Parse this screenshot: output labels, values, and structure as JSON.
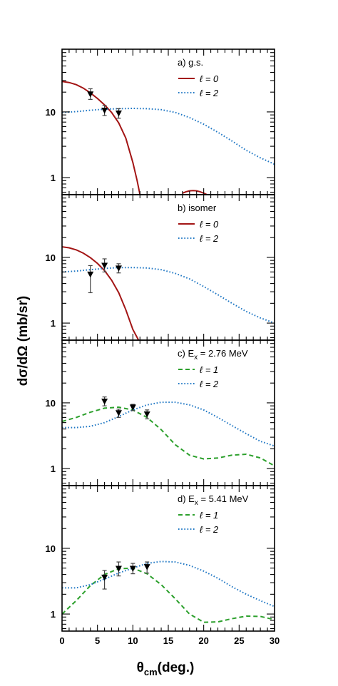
{
  "figure": {
    "y_title": "dσ/dΩ (mb/sr)",
    "x_title_main": "θ",
    "x_title_sub": "cm",
    "x_title_tail": "(deg.)"
  },
  "chart_data": [
    {
      "type": "line",
      "panel": "a",
      "legend_title_parts": [
        "a) g.s."
      ],
      "x_range": [
        0,
        30
      ],
      "y_range": [
        0.55,
        90
      ],
      "y_scale": "log",
      "x_ticks": [
        0,
        5,
        10,
        15,
        20,
        25,
        30
      ],
      "y_tick_labels": [
        {
          "value": 1,
          "label": "1"
        },
        {
          "value": 10,
          "label": "10"
        }
      ],
      "legend_position": "top-right",
      "series": [
        {
          "label": "ℓ = 0",
          "color": "#a31515",
          "dash": "solid",
          "x": [
            0,
            1,
            2,
            3,
            4,
            5,
            6,
            7,
            8,
            9,
            10,
            10.6,
            11
          ],
          "y": [
            29,
            28,
            26,
            23,
            19.5,
            16,
            12.8,
            9.8,
            6.8,
            4.0,
            1.7,
            0.9,
            0.55
          ]
        },
        {
          "label": "",
          "color": "#a31515",
          "dash": "solid",
          "x": [
            17,
            17.5,
            18,
            18.5,
            19,
            19.5,
            20,
            20.5
          ],
          "y": [
            0.58,
            0.61,
            0.63,
            0.635,
            0.63,
            0.61,
            0.58,
            0.55
          ]
        },
        {
          "label": "ℓ = 2",
          "color": "#1f77c4",
          "dash": "dotted",
          "x": [
            0,
            2,
            4,
            6,
            8,
            10,
            12,
            14,
            16,
            18,
            20,
            22,
            24,
            26,
            28,
            30
          ],
          "y": [
            9.8,
            10.1,
            10.6,
            11.0,
            11.2,
            11.3,
            11.2,
            10.8,
            9.8,
            8.2,
            6.5,
            4.9,
            3.6,
            2.6,
            2.0,
            1.6
          ]
        }
      ],
      "data_points": [
        {
          "x": 4,
          "y": 18.5,
          "y_low": 15.5,
          "y_high": 22.5
        },
        {
          "x": 6,
          "y": 10.5,
          "y_low": 8.8,
          "y_high": 12.5
        },
        {
          "x": 8,
          "y": 9.5,
          "y_low": 8.0,
          "y_high": 11.2
        }
      ]
    },
    {
      "type": "line",
      "panel": "b",
      "legend_title_parts": [
        "b) isomer"
      ],
      "x_range": [
        0,
        30
      ],
      "y_range": [
        0.55,
        90
      ],
      "y_scale": "log",
      "x_ticks": [
        0,
        5,
        10,
        15,
        20,
        25,
        30
      ],
      "y_tick_labels": [
        {
          "value": 1,
          "label": "1"
        },
        {
          "value": 10,
          "label": "10"
        }
      ],
      "legend_position": "top-right",
      "series": [
        {
          "label": "ℓ = 0",
          "color": "#a31515",
          "dash": "solid",
          "x": [
            0,
            1,
            2,
            3,
            4,
            5,
            6,
            7,
            8,
            9,
            10,
            10.8
          ],
          "y": [
            14.5,
            14.0,
            13.0,
            11.6,
            9.9,
            8.1,
            6.3,
            4.5,
            2.9,
            1.6,
            0.8,
            0.55
          ]
        },
        {
          "label": "ℓ = 2",
          "color": "#1f77c4",
          "dash": "dotted",
          "x": [
            0,
            2,
            4,
            6,
            8,
            10,
            12,
            14,
            16,
            18,
            20,
            22,
            24,
            26,
            28,
            30
          ],
          "y": [
            6.0,
            6.2,
            6.5,
            6.8,
            7.0,
            7.0,
            6.9,
            6.5,
            5.7,
            4.7,
            3.6,
            2.7,
            2.0,
            1.5,
            1.2,
            1.0
          ]
        }
      ],
      "data_points": [
        {
          "x": 4,
          "y": 5.5,
          "y_low": 2.9,
          "y_high": 7.5
        },
        {
          "x": 6,
          "y": 7.5,
          "y_low": 6.0,
          "y_high": 9.5
        },
        {
          "x": 8,
          "y": 6.8,
          "y_low": 5.8,
          "y_high": 8.0
        }
      ]
    },
    {
      "type": "line",
      "panel": "c",
      "legend_title_parts": [
        "c) E",
        "x",
        " = 2.76 MeV"
      ],
      "x_range": [
        0,
        30
      ],
      "y_range": [
        0.55,
        90
      ],
      "y_scale": "log",
      "x_ticks": [
        0,
        5,
        10,
        15,
        20,
        25,
        30
      ],
      "y_tick_labels": [
        {
          "value": 1,
          "label": "1"
        },
        {
          "value": 10,
          "label": "10"
        }
      ],
      "legend_position": "top-right",
      "series": [
        {
          "label": "ℓ = 1",
          "color": "#2ca02c",
          "dash": "dashed",
          "x": [
            0,
            2,
            4,
            6,
            8,
            10,
            12,
            14,
            16,
            18,
            20,
            22,
            24,
            26,
            28,
            30
          ],
          "y": [
            5.2,
            6.0,
            7.2,
            8.3,
            8.6,
            7.8,
            6.0,
            3.9,
            2.3,
            1.6,
            1.4,
            1.45,
            1.6,
            1.65,
            1.45,
            1.1
          ]
        },
        {
          "label": "ℓ = 2",
          "color": "#1f77c4",
          "dash": "dotted",
          "x": [
            0,
            2,
            4,
            6,
            8,
            10,
            12,
            14,
            16,
            18,
            20,
            22,
            24,
            26,
            28,
            30
          ],
          "y": [
            4.2,
            4.2,
            4.4,
            5.0,
            6.2,
            7.8,
            9.3,
            10.2,
            10.2,
            9.3,
            7.8,
            6.0,
            4.5,
            3.4,
            2.6,
            2.2
          ]
        }
      ],
      "data_points": [
        {
          "x": 6,
          "y": 10.5,
          "y_low": 9.0,
          "y_high": 12.3
        },
        {
          "x": 8,
          "y": 7.0,
          "y_low": 6.0,
          "y_high": 8.0
        },
        {
          "x": 10,
          "y": 8.5,
          "y_low": 7.6,
          "y_high": 9.5
        },
        {
          "x": 12,
          "y": 6.7,
          "y_low": 5.7,
          "y_high": 7.8
        }
      ]
    },
    {
      "type": "line",
      "panel": "d",
      "legend_title_parts": [
        "d) E",
        "x",
        " = 5.41 MeV"
      ],
      "x_range": [
        0,
        30
      ],
      "y_range": [
        0.55,
        90
      ],
      "y_scale": "log",
      "x_ticks": [
        0,
        5,
        10,
        15,
        20,
        25,
        30
      ],
      "x_tick_labels": [
        "0",
        "5",
        "10",
        "15",
        "20",
        "25",
        "30"
      ],
      "y_tick_labels": [
        {
          "value": 1,
          "label": "1"
        },
        {
          "value": 10,
          "label": "10"
        }
      ],
      "legend_position": "top-right",
      "series": [
        {
          "label": "ℓ = 1",
          "color": "#2ca02c",
          "dash": "dashed",
          "x": [
            0,
            2,
            4,
            6,
            8,
            10,
            12,
            14,
            16,
            18,
            20,
            22,
            24,
            26,
            28,
            30
          ],
          "y": [
            1.0,
            1.6,
            2.7,
            4.0,
            4.9,
            5.0,
            4.1,
            2.8,
            1.7,
            1.0,
            0.75,
            0.76,
            0.85,
            0.93,
            0.92,
            0.82
          ]
        },
        {
          "label": "ℓ = 2",
          "color": "#1f77c4",
          "dash": "dotted",
          "x": [
            0,
            2,
            4,
            6,
            8,
            10,
            12,
            14,
            16,
            18,
            20,
            22,
            24,
            26,
            28,
            30
          ],
          "y": [
            2.5,
            2.5,
            2.8,
            3.4,
            4.2,
            5.0,
            5.9,
            6.3,
            6.2,
            5.5,
            4.5,
            3.5,
            2.6,
            2.0,
            1.6,
            1.3
          ]
        }
      ],
      "data_points": [
        {
          "x": 6,
          "y": 3.6,
          "y_low": 2.4,
          "y_high": 4.6
        },
        {
          "x": 8,
          "y": 4.9,
          "y_low": 3.8,
          "y_high": 6.2
        },
        {
          "x": 10,
          "y": 4.9,
          "y_low": 4.1,
          "y_high": 5.9
        },
        {
          "x": 12,
          "y": 5.2,
          "y_low": 4.2,
          "y_high": 6.2
        }
      ]
    }
  ]
}
